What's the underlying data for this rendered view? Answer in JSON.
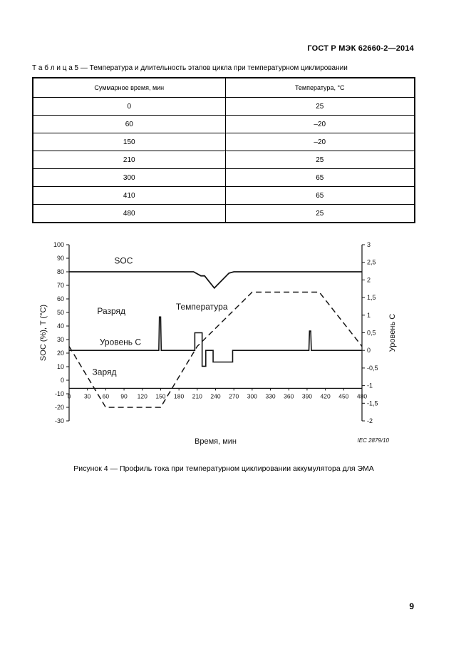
{
  "page": {
    "header": "ГОСТ Р МЭК 62660-2—2014",
    "page_number": "9"
  },
  "table": {
    "caption": "Т а б л и ц а  5 — Температура и длительность этапов цикла при температурном циклировании",
    "columns": [
      "Суммарное время, мин",
      "Температура, °С"
    ],
    "rows": [
      [
        "0",
        "25"
      ],
      [
        "60",
        "–20"
      ],
      [
        "150",
        "–20"
      ],
      [
        "210",
        "25"
      ],
      [
        "300",
        "65"
      ],
      [
        "410",
        "65"
      ],
      [
        "480",
        "25"
      ]
    ]
  },
  "figure": {
    "caption": "Рисунок 4 — Профиль тока при температурном циклировании аккумулятора для ЭМА"
  },
  "chart_data": {
    "type": "line",
    "title": "",
    "xlabel": "Время, мин",
    "ylabel_left": "SOC  (%), T (°C)",
    "ylabel_right": "Уровень С",
    "source_note": "IEC  2879/10",
    "xlim": [
      0,
      480
    ],
    "ylim_left": [
      -30,
      100
    ],
    "ylim_right": [
      -2,
      3
    ],
    "x_axis_position": -6,
    "x_ticks": [
      0,
      30,
      60,
      90,
      120,
      150,
      180,
      210,
      240,
      270,
      300,
      330,
      360,
      390,
      420,
      450,
      480
    ],
    "y_left_ticks": [
      100,
      90,
      80,
      70,
      60,
      50,
      40,
      30,
      20,
      10,
      0,
      -10,
      -20,
      -30
    ],
    "y_right_ticks": [
      3,
      2.5,
      2,
      1.5,
      1,
      0.5,
      0,
      -0.5,
      -1,
      -1.5,
      -2
    ],
    "series": [
      {
        "name": "SOC",
        "axis": "left",
        "style": "solid",
        "width": 1.8,
        "x": [
          0,
          204,
          216,
          222,
          238,
          262,
          270,
          480
        ],
        "y": [
          80,
          80,
          77,
          77,
          68,
          79,
          80,
          80
        ]
      },
      {
        "name": "Температура",
        "axis": "left",
        "style": "dashed",
        "width": 1.5,
        "x": [
          0,
          60,
          150,
          210,
          300,
          410,
          480
        ],
        "y": [
          25,
          -20,
          -20,
          25,
          65,
          65,
          25
        ]
      },
      {
        "name": "Ток, уровень С",
        "axis": "right",
        "style": "solid",
        "width": 1.6,
        "x": [
          0,
          147,
          148,
          150,
          151,
          206,
          206,
          218,
          218,
          224,
          224,
          236,
          236,
          268,
          268,
          393,
          394,
          396,
          397,
          480
        ],
        "y": [
          0,
          0,
          0.95,
          0.95,
          0,
          0,
          0.5,
          0.5,
          -0.45,
          -0.45,
          0,
          0,
          -0.33,
          -0.33,
          0,
          0,
          0.55,
          0.55,
          0,
          0
        ]
      }
    ],
    "annotations": [
      {
        "text": "SOC",
        "t": 74,
        "v": 86
      },
      {
        "text": "Температура",
        "t": 175,
        "v": 52
      },
      {
        "text": "Разряд",
        "t": 46,
        "v": 49
      },
      {
        "text": "Уровень С",
        "t": 50,
        "v": 26
      },
      {
        "text": "Заряд",
        "t": 38,
        "v": 4
      }
    ]
  }
}
